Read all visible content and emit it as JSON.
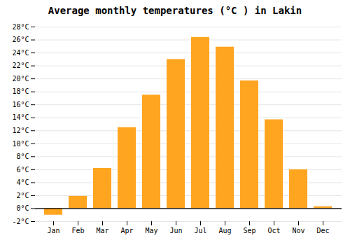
{
  "chart_data": {
    "type": "bar",
    "title": "Average monthly temperatures (°C ) in Lakin",
    "categories": [
      "Jan",
      "Feb",
      "Mar",
      "Apr",
      "May",
      "Jun",
      "Jul",
      "Aug",
      "Sep",
      "Oct",
      "Nov",
      "Dec"
    ],
    "values": [
      -1.0,
      1.9,
      6.2,
      12.5,
      17.5,
      23.0,
      26.4,
      24.9,
      19.7,
      13.7,
      6.0,
      0.3
    ],
    "color": "#FFA520",
    "ylim": [
      -2,
      28
    ],
    "yticks": [
      {
        "value": -2,
        "label": "-2°C"
      },
      {
        "value": 0,
        "label": "0°C"
      },
      {
        "value": 2,
        "label": "2°C"
      },
      {
        "value": 4,
        "label": "4°C"
      },
      {
        "value": 6,
        "label": "6°C"
      },
      {
        "value": 8,
        "label": "8°C"
      },
      {
        "value": 10,
        "label": "10°C"
      },
      {
        "value": 12,
        "label": "12°C"
      },
      {
        "value": 14,
        "label": "14°C"
      },
      {
        "value": 16,
        "label": "16°C"
      },
      {
        "value": 18,
        "label": "18°C"
      },
      {
        "value": 20,
        "label": "20°C"
      },
      {
        "value": 22,
        "label": "22°C"
      },
      {
        "value": 24,
        "label": "24°C"
      },
      {
        "value": 26,
        "label": "26°C"
      },
      {
        "value": 28,
        "label": "28°C"
      }
    ],
    "grid": true
  }
}
